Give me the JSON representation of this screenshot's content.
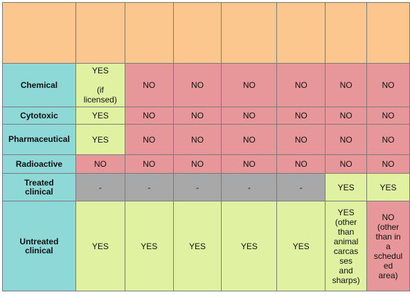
{
  "header": {
    "columns": [
      "",
      "",
      "",
      "",
      "",
      "",
      "",
      ""
    ]
  },
  "rows": [
    {
      "label": "Chemical",
      "cells": [
        "YES\n\n(if\nlicensed)",
        "NO",
        "NO",
        "NO",
        "NO",
        "NO",
        "NO"
      ]
    },
    {
      "label": "Cytotoxic",
      "cells": [
        "YES",
        "NO",
        "NO",
        "NO",
        "NO",
        "NO",
        "NO"
      ]
    },
    {
      "label": "Pharmaceutical",
      "cells": [
        "YES",
        "NO",
        "NO",
        "NO",
        "NO",
        "NO",
        "NO"
      ]
    },
    {
      "label": "Radioactive",
      "cells": [
        "NO",
        "NO",
        "NO",
        "NO",
        "NO",
        "NO",
        "NO"
      ]
    },
    {
      "label": "Treated\nclinical",
      "cells": [
        "-",
        "-",
        "-",
        "-",
        "-",
        "YES",
        "YES"
      ]
    },
    {
      "label": "Untreated\nclinical",
      "cells": [
        "YES",
        "YES",
        "YES",
        "YES",
        "YES",
        "YES\n(other\nthan\nanimal\ncarcas\nses\nand\nsharps)",
        "NO\n(other\nthan in\na\nschedul\ned\narea)"
      ]
    }
  ],
  "colors": {
    "header": "#fbc78f",
    "row_header": "#8ed8d8",
    "yes": "#e0f2a2",
    "no": "#e7979a",
    "not_applicable": "#a8a8a8"
  }
}
